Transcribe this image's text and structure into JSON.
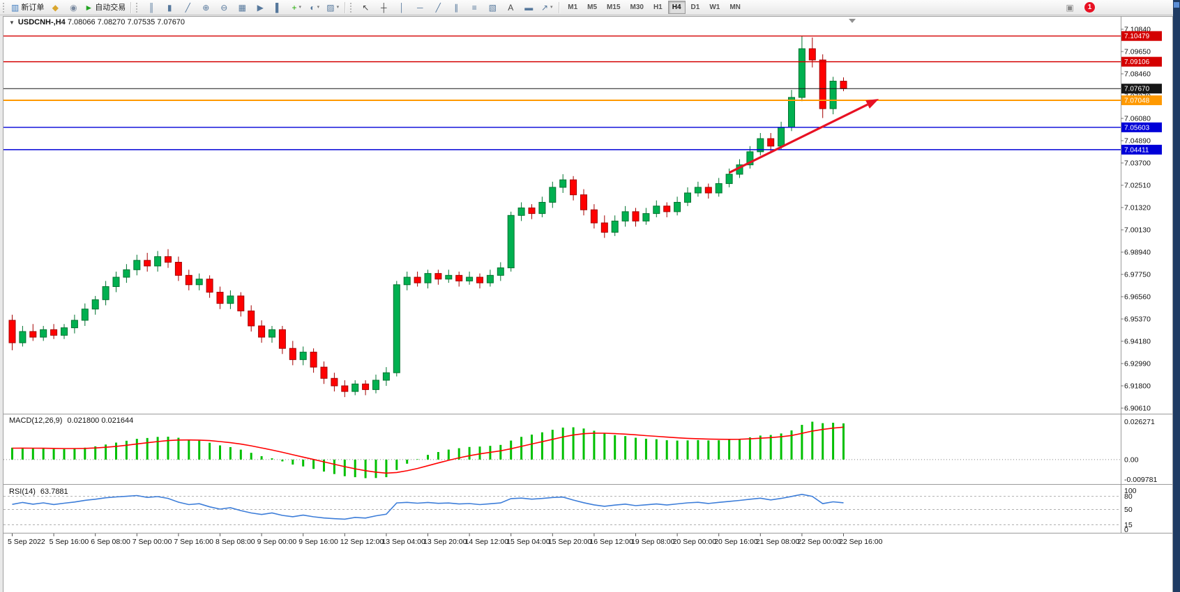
{
  "toolbar": {
    "groups": [
      {
        "name": "trade-tools",
        "items": [
          {
            "name": "new-order-button",
            "glyph": "▥",
            "color": "#3f7cbf",
            "label": "新订单"
          },
          {
            "name": "metaeditor-button",
            "glyph": "◆",
            "color": "#d9a62e"
          },
          {
            "name": "refresh-button",
            "glyph": "◉",
            "color": "#7a8aa0"
          },
          {
            "name": "autotrading-button",
            "glyph": "►",
            "color": "#21a321",
            "label": "自动交易"
          }
        ]
      },
      {
        "name": "chart-tools",
        "items": [
          {
            "name": "bar-chart-button",
            "glyph": "║",
            "color": "#56789c"
          },
          {
            "name": "candlestick-chart-button",
            "glyph": "▮",
            "color": "#56789c"
          },
          {
            "name": "line-chart-button",
            "glyph": "╱",
            "color": "#56789c"
          },
          {
            "name": "zoom-in-button",
            "glyph": "⊕",
            "color": "#56789c"
          },
          {
            "name": "zoom-out-button",
            "glyph": "⊖",
            "color": "#56789c"
          },
          {
            "name": "tile-windows-button",
            "glyph": "▦",
            "color": "#56789c"
          },
          {
            "name": "scroll-to-end-button",
            "glyph": "▶",
            "color": "#56789c"
          },
          {
            "name": "chart-shift-button",
            "glyph": "▌",
            "color": "#56789c"
          },
          {
            "name": "indicators-button",
            "glyph": "+",
            "color": "#1faa00",
            "dropdown": true
          },
          {
            "name": "periods-button",
            "glyph": "◐",
            "color": "#56789c",
            "dropdown": true
          },
          {
            "name": "templates-button",
            "glyph": "▨",
            "color": "#56789c",
            "dropdown": true
          }
        ]
      },
      {
        "name": "object-tools",
        "items": [
          {
            "name": "cursor-button",
            "glyph": "↖",
            "color": "#444444"
          },
          {
            "name": "crosshair-button",
            "glyph": "┼",
            "color": "#444444"
          },
          {
            "name": "vertical-line-button",
            "glyph": "│",
            "color": "#56789c"
          },
          {
            "name": "horizontal-line-button",
            "glyph": "─",
            "color": "#56789c"
          },
          {
            "name": "trendline-button",
            "glyph": "╱",
            "color": "#56789c"
          },
          {
            "name": "channel-button",
            "glyph": "∥",
            "color": "#56789c"
          },
          {
            "name": "fibonacci-button",
            "glyph": "≡",
            "color": "#56789c"
          },
          {
            "name": "shapes-button",
            "glyph": "▧",
            "color": "#56789c"
          },
          {
            "name": "text-button",
            "glyph": "A",
            "color": "#444444"
          },
          {
            "name": "text-label-button",
            "glyph": "▬",
            "color": "#56789c"
          },
          {
            "name": "arrows-button",
            "glyph": "↗",
            "color": "#56789c",
            "dropdown": true
          }
        ]
      }
    ],
    "timeframes": [
      "M1",
      "M5",
      "M15",
      "M30",
      "H1",
      "H4",
      "D1",
      "W1",
      "MN"
    ],
    "active_timeframe": "H4",
    "right_items": [
      {
        "name": "community-button",
        "glyph": "▣",
        "color": "#8a8a8a"
      }
    ],
    "notification_count": "1"
  },
  "chart_data": {
    "type": "candlestick",
    "symbol": "USDCNH-",
    "timeframe": "H4",
    "symbol_label": "USDCNH-,H4",
    "ohlc_label": "7.08066 7.08270 7.07535 7.07670",
    "quote": {
      "open": 7.08066,
      "high": 7.0827,
      "low": 7.07535,
      "close": 7.0767
    },
    "price_axis": {
      "top_price": 7.1084,
      "step": 0.0119,
      "count": 18
    },
    "price_axis_labels": [
      "7.10840",
      "7.09650",
      "7.08460",
      "7.07270",
      "7.06080",
      "7.04890",
      "7.03700",
      "7.02510",
      "7.01320",
      "7.00130",
      "6.98940",
      "6.97750",
      "6.96560",
      "6.95370",
      "6.94180",
      "6.92990",
      "6.91800",
      "6.90610"
    ],
    "candles": [
      [
        6.953,
        6.956,
        6.937,
        6.941
      ],
      [
        6.941,
        6.95,
        6.939,
        6.947
      ],
      [
        6.947,
        6.951,
        6.942,
        6.944
      ],
      [
        6.944,
        6.95,
        6.942,
        6.948
      ],
      [
        6.948,
        6.951,
        6.943,
        6.945
      ],
      [
        6.945,
        6.951,
        6.943,
        6.949
      ],
      [
        6.949,
        6.956,
        6.946,
        6.953
      ],
      [
        6.953,
        6.962,
        6.95,
        6.959
      ],
      [
        6.959,
        6.966,
        6.956,
        6.964
      ],
      [
        6.964,
        6.974,
        6.961,
        6.971
      ],
      [
        6.971,
        6.979,
        6.968,
        6.976
      ],
      [
        6.976,
        6.983,
        6.973,
        6.98
      ],
      [
        6.98,
        6.988,
        6.977,
        6.985
      ],
      [
        6.985,
        6.989,
        6.979,
        6.982
      ],
      [
        6.982,
        6.99,
        6.979,
        6.987
      ],
      [
        6.987,
        6.991,
        6.981,
        6.984
      ],
      [
        6.984,
        6.987,
        6.974,
        6.977
      ],
      [
        6.977,
        6.98,
        6.969,
        6.972
      ],
      [
        6.972,
        6.978,
        6.969,
        6.975
      ],
      [
        6.975,
        6.977,
        6.965,
        6.968
      ],
      [
        6.968,
        6.971,
        6.959,
        6.962
      ],
      [
        6.962,
        6.969,
        6.959,
        6.966
      ],
      [
        6.966,
        6.968,
        6.955,
        6.958
      ],
      [
        6.958,
        6.961,
        6.947,
        6.95
      ],
      [
        6.95,
        6.953,
        6.941,
        6.944
      ],
      [
        6.944,
        6.95,
        6.941,
        6.948
      ],
      [
        6.948,
        6.95,
        6.935,
        6.938
      ],
      [
        6.938,
        6.942,
        6.929,
        6.932
      ],
      [
        6.932,
        6.939,
        6.929,
        6.936
      ],
      [
        6.936,
        6.938,
        6.925,
        6.928
      ],
      [
        6.928,
        6.931,
        6.919,
        6.922
      ],
      [
        6.922,
        6.925,
        6.915,
        6.918
      ],
      [
        6.918,
        6.921,
        6.912,
        6.915
      ],
      [
        6.915,
        6.921,
        6.913,
        6.919
      ],
      [
        6.919,
        6.921,
        6.913,
        6.916
      ],
      [
        6.916,
        6.924,
        6.914,
        6.921
      ],
      [
        6.921,
        6.928,
        6.918,
        6.925
      ],
      [
        6.925,
        6.974,
        6.923,
        6.972
      ],
      [
        6.972,
        6.979,
        6.969,
        6.976
      ],
      [
        6.976,
        6.979,
        6.971,
        6.973
      ],
      [
        6.973,
        6.98,
        6.97,
        6.978
      ],
      [
        6.978,
        6.98,
        6.972,
        6.975
      ],
      [
        6.975,
        6.98,
        6.973,
        6.977
      ],
      [
        6.977,
        6.979,
        6.971,
        6.974
      ],
      [
        6.974,
        6.979,
        6.972,
        6.976
      ],
      [
        6.976,
        6.978,
        6.97,
        6.973
      ],
      [
        6.973,
        6.98,
        6.971,
        6.977
      ],
      [
        6.977,
        6.984,
        6.974,
        6.981
      ],
      [
        6.981,
        7.011,
        6.979,
        7.009
      ],
      [
        7.009,
        7.016,
        7.006,
        7.013
      ],
      [
        7.013,
        7.015,
        7.007,
        7.01
      ],
      [
        7.01,
        7.019,
        7.008,
        7.016
      ],
      [
        7.016,
        7.027,
        7.013,
        7.024
      ],
      [
        7.024,
        7.031,
        7.021,
        7.028
      ],
      [
        7.028,
        7.03,
        7.017,
        7.02
      ],
      [
        7.02,
        7.023,
        7.009,
        7.012
      ],
      [
        7.012,
        7.015,
        7.002,
        7.005
      ],
      [
        7.005,
        7.009,
        6.997,
        7.0
      ],
      [
        7.0,
        7.009,
        6.998,
        7.006
      ],
      [
        7.006,
        7.014,
        7.003,
        7.011
      ],
      [
        7.011,
        7.013,
        7.003,
        7.006
      ],
      [
        7.006,
        7.013,
        7.004,
        7.01
      ],
      [
        7.01,
        7.017,
        7.008,
        7.014
      ],
      [
        7.014,
        7.016,
        7.008,
        7.011
      ],
      [
        7.011,
        7.019,
        7.009,
        7.016
      ],
      [
        7.016,
        7.024,
        7.014,
        7.021
      ],
      [
        7.021,
        7.027,
        7.019,
        7.024
      ],
      [
        7.024,
        7.026,
        7.018,
        7.021
      ],
      [
        7.021,
        7.029,
        7.019,
        7.026
      ],
      [
        7.026,
        7.034,
        7.024,
        7.031
      ],
      [
        7.031,
        7.039,
        7.029,
        7.036
      ],
      [
        7.036,
        7.046,
        7.034,
        7.043
      ],
      [
        7.043,
        7.053,
        7.041,
        7.05
      ],
      [
        7.05,
        7.053,
        7.043,
        7.046
      ],
      [
        7.046,
        7.059,
        7.044,
        7.056
      ],
      [
        7.056,
        7.076,
        7.054,
        7.072
      ],
      [
        7.072,
        7.105,
        7.07,
        7.098
      ],
      [
        7.098,
        7.104,
        7.088,
        7.092
      ],
      [
        7.092,
        7.095,
        7.061,
        7.066
      ],
      [
        7.066,
        7.083,
        7.063,
        7.0807
      ],
      [
        7.08066,
        7.0827,
        7.07535,
        7.0767
      ]
    ],
    "up_color": "#00b050",
    "up_stroke": "#00732f",
    "down_color": "#ff0000",
    "down_stroke": "#a40000",
    "time_label_every": 4,
    "time_labels": [
      "5 Sep 2022",
      "5 Sep 16:00",
      "6 Sep 08:00",
      "7 Sep 00:00",
      "7 Sep 16:00",
      "8 Sep 08:00",
      "9 Sep 00:00",
      "9 Sep 16:00",
      "12 Sep 12:00",
      "13 Sep 04:00",
      "13 Sep 20:00",
      "14 Sep 12:00",
      "15 Sep 04:00",
      "15 Sep 20:00",
      "16 Sep 12:00",
      "19 Sep 08:00",
      "20 Sep 00:00",
      "20 Sep 16:00",
      "21 Sep 08:00",
      "22 Sep 00:00",
      "22 Sep 16:00"
    ],
    "hlines": [
      {
        "price": 7.10479,
        "color": "#d40000",
        "width": 1.4,
        "badge": "7.10479",
        "badge_bg": "#d40000"
      },
      {
        "price": 7.09106,
        "color": "#d40000",
        "width": 1.4,
        "badge": "7.09106",
        "badge_bg": "#d40000"
      },
      {
        "price": 7.0767,
        "color": "#161616",
        "width": 1.0,
        "badge": "7.07670",
        "badge_bg": "#161616"
      },
      {
        "price": 7.07048,
        "color": "#ff9900",
        "width": 2.0,
        "badge": "7.07048",
        "badge_bg": "#ff9900"
      },
      {
        "price": 7.05603,
        "color": "#0000d8",
        "width": 1.4,
        "badge": "7.05603",
        "badge_bg": "#0000d8"
      },
      {
        "price": 7.04411,
        "color": "#0000d8",
        "width": 1.4,
        "badge": "7.04411",
        "badge_bg": "#0000d8"
      }
    ],
    "trend_arrow": {
      "from_index": 69,
      "from_price": 7.0318,
      "to_index": 83.4,
      "to_price": 7.0712,
      "color": "#e81123"
    },
    "indicators": {
      "macd": {
        "label": "MACD(12,26,9)",
        "values_label": "0.021800 0.021644",
        "params": [
          12,
          26,
          9
        ],
        "scale_top": "0.026271",
        "scale_zero": "0.00",
        "scale_bottom": "-0.009781",
        "hist_color": "#00c000",
        "signal_color": "#ff0000"
      },
      "rsi": {
        "label": "RSI(14)",
        "value_label": "63.7881",
        "period": 14,
        "levels": [
          80,
          50,
          15
        ],
        "scale_values": [
          100,
          80,
          50,
          15,
          0
        ],
        "scale_labels": [
          "100",
          "80",
          "50",
          "15",
          "0"
        ],
        "line_color": "#3c7dd9"
      }
    }
  }
}
